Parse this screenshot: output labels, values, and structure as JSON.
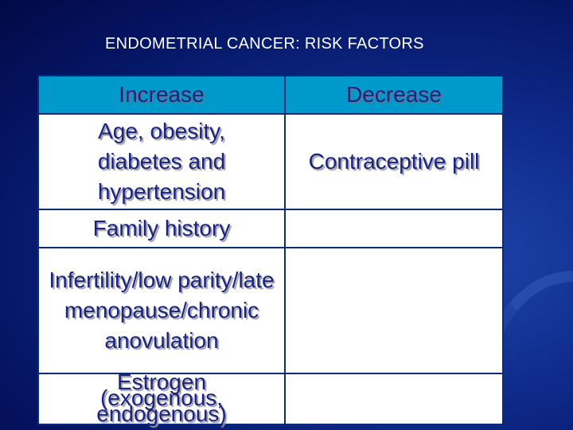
{
  "slide": {
    "title": "ENDOMETRIAL CANCER: RISK FACTORS"
  },
  "table": {
    "headers": [
      "Increase",
      "Decrease"
    ],
    "rows": [
      [
        "Age, obesity, diabetes and hypertension",
        "Contraceptive pill"
      ],
      [
        "Family history",
        ""
      ],
      [
        "Infertility/low parity/late menopause/chronic anovulation",
        ""
      ],
      [
        "Estrogen (exogenous, endogenous)",
        ""
      ]
    ]
  },
  "colors": {
    "header_bg": "#0099cc",
    "text": "#1a237e",
    "background": "#0e2a8a"
  }
}
